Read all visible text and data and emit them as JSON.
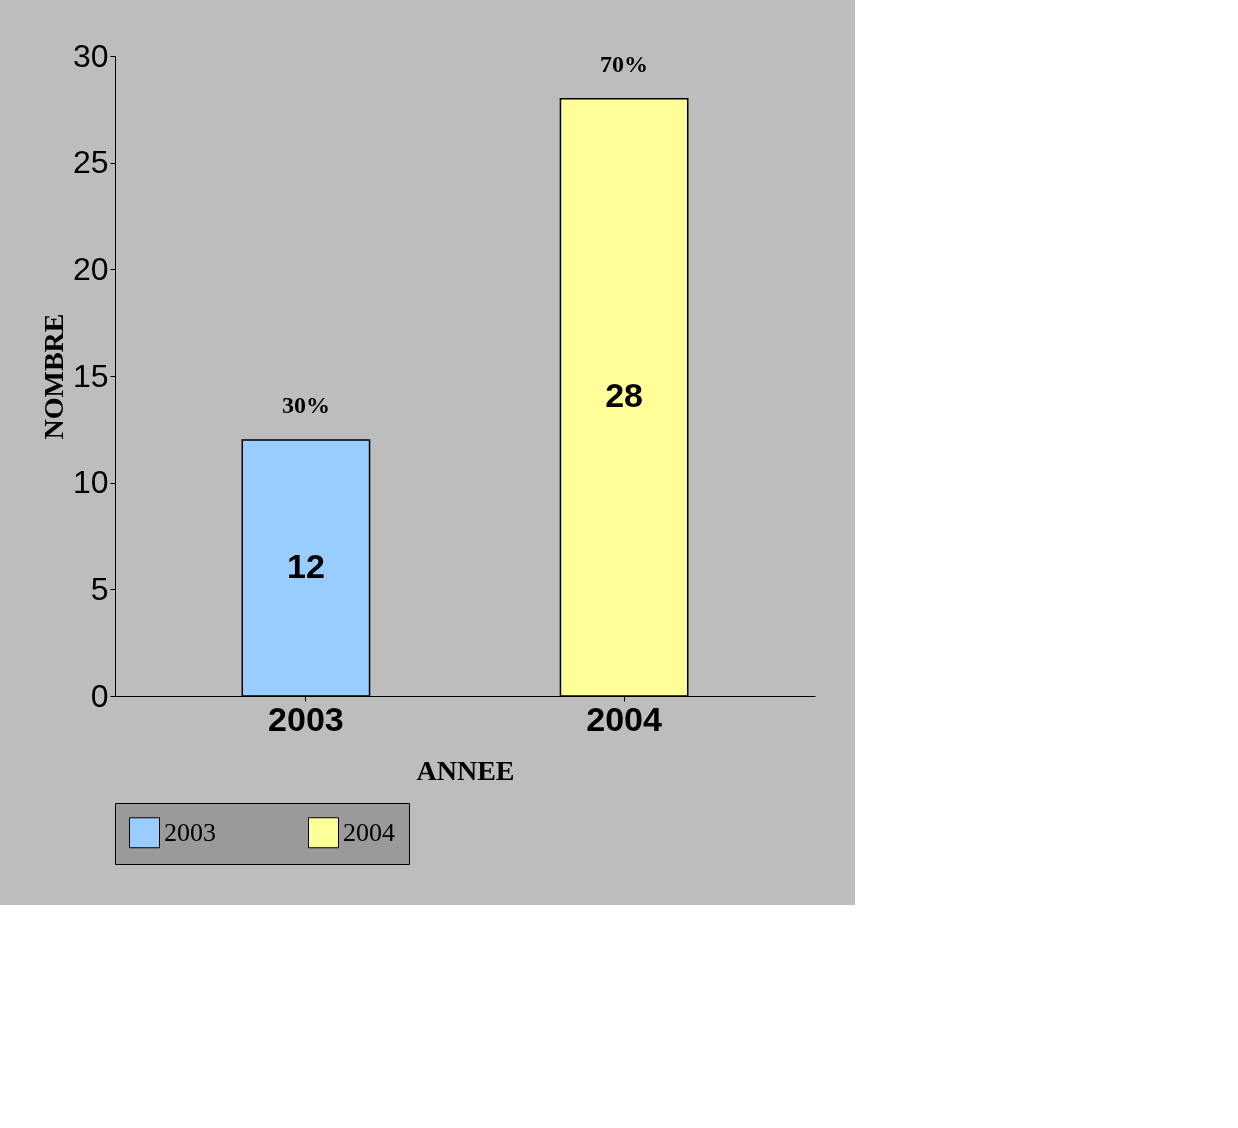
{
  "chart_data": {
    "type": "bar",
    "xlabel": "ANNEE",
    "ylabel": "NOMBRE",
    "categories": [
      "2003",
      "2004"
    ],
    "series": [
      {
        "name": "2003",
        "color": "#99ccff",
        "values": [
          12,
          null
        ]
      },
      {
        "name": "2004",
        "color": "#ffff99",
        "values": [
          null,
          28
        ]
      }
    ],
    "data_labels": true,
    "annotations": [
      {
        "text": "30%",
        "x": "2003",
        "y": 12
      },
      {
        "text": "70%",
        "x": "2004",
        "y": 28
      }
    ],
    "ylim": [
      0,
      30
    ],
    "yticks": [
      0,
      5,
      10,
      15,
      20,
      25,
      30
    ],
    "grid": false,
    "legend": "bottom"
  }
}
